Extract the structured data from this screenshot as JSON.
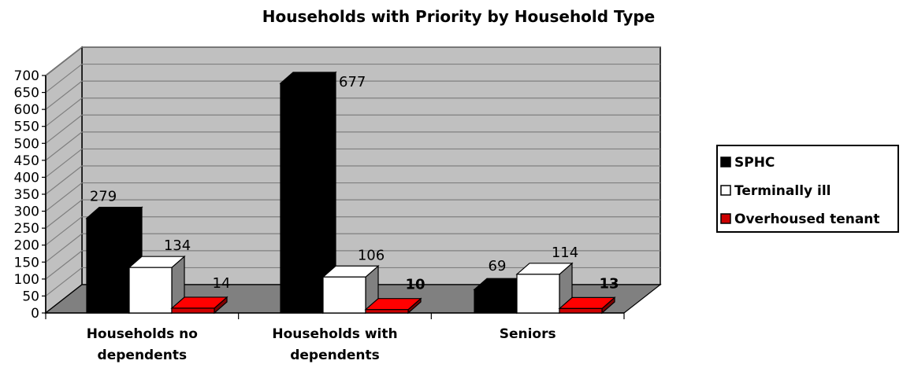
{
  "chart_data": {
    "type": "bar",
    "title": "Households with Priority by Household Type",
    "categories": [
      "Households no|dependents",
      "Households with|dependents",
      "Seniors"
    ],
    "series": [
      {
        "name": "SPHC",
        "values": [
          279,
          677,
          69
        ],
        "color": "#000000"
      },
      {
        "name": "Terminally ill",
        "values": [
          134,
          106,
          114
        ],
        "color": "#ffffff"
      },
      {
        "name": "Overhoused tenant",
        "values": [
          14,
          10,
          13
        ],
        "color": "#cc0000"
      }
    ],
    "data_labels": [
      [
        "279",
        "134",
        "14"
      ],
      [
        "677",
        "106",
        "10"
      ],
      [
        "69",
        "114",
        "13"
      ]
    ],
    "bold_labels": [
      [
        false,
        false,
        false
      ],
      [
        false,
        false,
        true
      ],
      [
        false,
        false,
        true
      ]
    ],
    "yticks": [
      "0",
      "50",
      "100",
      "150",
      "200",
      "250",
      "300",
      "350",
      "400",
      "450",
      "500",
      "550",
      "600",
      "650",
      "700"
    ],
    "ylim": [
      0,
      700
    ],
    "grid": true,
    "legend_position": "right",
    "wall_color": "#c0c0c0",
    "floor_color": "#808080"
  }
}
